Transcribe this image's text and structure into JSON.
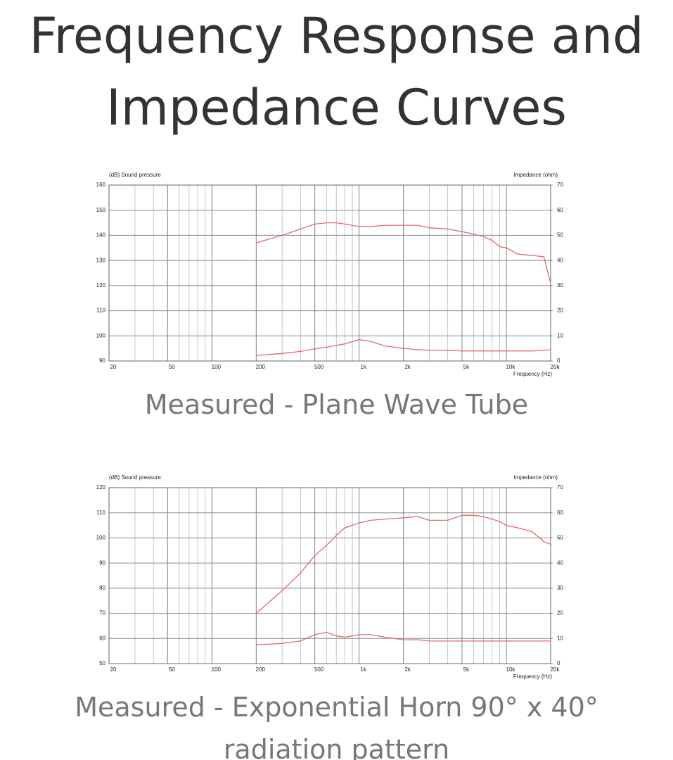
{
  "title": "Frequency Response and Impedance Curves",
  "chart_data": [
    {
      "type": "line",
      "caption": "Measured - Plane Wave Tube",
      "ylabel": "(dB) Sound pressure",
      "y2label": "Impedance (ohm)",
      "xlabel": "Frequency (Hz)",
      "xscale": "log",
      "grid": true,
      "minor_grid": true,
      "xlim": [
        20,
        20000
      ],
      "xticks": [
        20,
        50,
        100,
        200,
        500,
        {
          "value": 1000,
          "label": "1k"
        },
        {
          "value": 2000,
          "label": "2k"
        },
        {
          "value": 5000,
          "label": "5k"
        },
        {
          "value": 10000,
          "label": "10k"
        },
        {
          "value": 20000,
          "label": "20k"
        }
      ],
      "ylim": [
        90,
        160
      ],
      "yticks": [
        90,
        100,
        110,
        120,
        130,
        140,
        150,
        160
      ],
      "y2lim": [
        0,
        70
      ],
      "y2ticks": [
        0,
        10,
        20,
        30,
        40,
        50,
        60,
        70
      ],
      "x": [
        200,
        300,
        400,
        500,
        600,
        700,
        800,
        1000,
        1200,
        1500,
        2000,
        2500,
        3000,
        4000,
        5000,
        6000,
        7000,
        8000,
        9000,
        10000,
        12000,
        15000,
        18000,
        20000
      ],
      "series": [
        {
          "color": "#e06a6a",
          "axis": "y",
          "values": [
            137,
            140,
            142.5,
            144.5,
            145,
            145,
            144.5,
            143.5,
            143.5,
            144,
            144,
            144,
            143,
            142.5,
            141.5,
            140.5,
            139.5,
            138,
            135.5,
            135,
            132.5,
            132,
            131.5,
            121
          ]
        },
        {
          "color": "#e06a6a",
          "axis": "y2",
          "values": [
            2.2,
            3,
            3.8,
            4.8,
            5.5,
            6.2,
            6.8,
            8.5,
            7.8,
            6,
            5,
            4.5,
            4.3,
            4.2,
            4,
            4,
            4,
            4,
            4,
            4,
            4,
            4,
            4.2,
            4.5
          ]
        }
      ]
    },
    {
      "type": "line",
      "caption": "Measured - Exponential Horn 90° x 40° radiation pattern",
      "ylabel": "(dB) Sound pressure",
      "y2label": "Impedance (ohm)",
      "xlabel": "Frequency (Hz)",
      "xscale": "log",
      "grid": true,
      "minor_grid": true,
      "xlim": [
        20,
        20000
      ],
      "xticks": [
        20,
        50,
        100,
        200,
        500,
        {
          "value": 1000,
          "label": "1k"
        },
        {
          "value": 2000,
          "label": "2k"
        },
        {
          "value": 5000,
          "label": "5k"
        },
        {
          "value": 10000,
          "label": "10k"
        },
        {
          "value": 20000,
          "label": "20k"
        }
      ],
      "ylim": [
        50,
        120
      ],
      "yticks": [
        50,
        60,
        70,
        80,
        90,
        100,
        110,
        120
      ],
      "y2lim": [
        0,
        70
      ],
      "y2ticks": [
        0,
        10,
        20,
        30,
        40,
        50,
        60,
        70
      ],
      "x": [
        200,
        300,
        400,
        500,
        600,
        700,
        800,
        1000,
        1200,
        1500,
        2000,
        2500,
        3000,
        4000,
        5000,
        6000,
        7000,
        8000,
        9000,
        10000,
        12000,
        15000,
        18000,
        20000
      ],
      "series": [
        {
          "color": "#e06a6a",
          "axis": "y",
          "values": [
            70,
            79,
            86,
            93,
            97,
            101,
            104,
            106,
            107,
            107.5,
            108,
            108.5,
            107,
            107,
            109,
            109,
            108.5,
            107.5,
            106.5,
            105,
            104,
            102.5,
            98.5,
            97.5
          ]
        },
        {
          "color": "#e06a6a",
          "axis": "y2",
          "values": [
            7.5,
            8,
            9,
            11.5,
            12.5,
            11,
            10.5,
            11.5,
            11.5,
            10.5,
            9.5,
            9.5,
            9,
            9,
            9,
            9,
            9,
            9,
            9,
            9,
            9,
            9,
            9,
            9
          ]
        }
      ]
    }
  ]
}
